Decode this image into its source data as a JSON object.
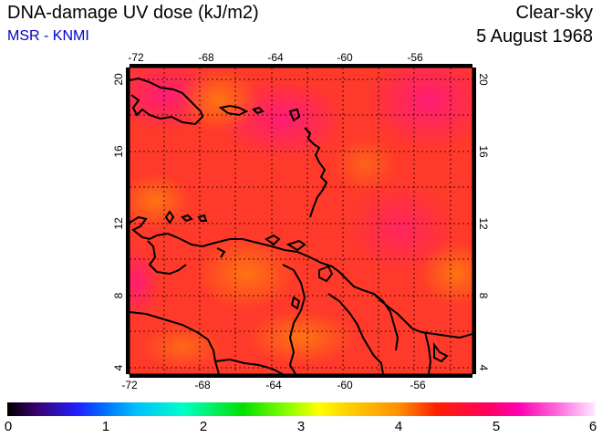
{
  "header": {
    "title": "DNA-damage UV dose (kJ/m2)",
    "subtitle": "MSR - KNMI",
    "condition": "Clear-sky",
    "date": "5 August 1968"
  },
  "map": {
    "lon_ticks": [
      "-72",
      "-68",
      "-64",
      "-60",
      "-56"
    ],
    "lat_ticks": [
      "20",
      "16",
      "12",
      "8",
      "4"
    ],
    "lon_range": [
      -72,
      -52.5
    ],
    "lat_range": [
      3.5,
      20.5
    ]
  },
  "colorbar": {
    "labels": [
      "0",
      "1",
      "2",
      "3",
      "4",
      "5",
      "6"
    ],
    "range": [
      0,
      6
    ]
  },
  "colors": {
    "field_base": "#ff3a2a",
    "field_orange": "#ff6a1a",
    "field_magenta": "#ff1a6a",
    "coast": "#000000",
    "subtitle": "#0000cc"
  }
}
